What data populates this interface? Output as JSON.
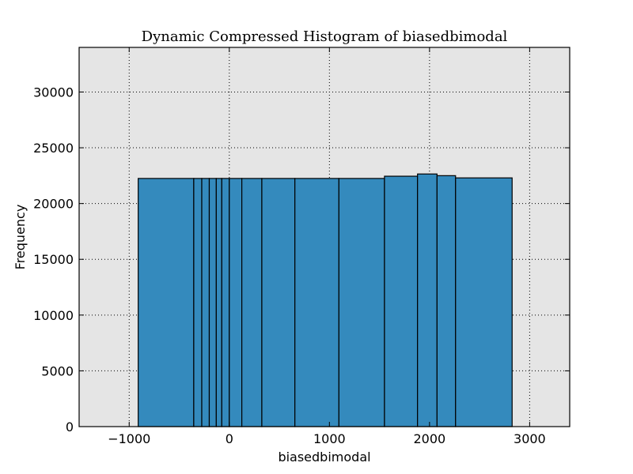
{
  "chart_data": {
    "type": "bar",
    "title": "Dynamic Compressed Histogram of biasedbimodal",
    "xlabel": "biasedbimodal",
    "ylabel": "Frequency",
    "xlim": [
      -1500,
      3400
    ],
    "ylim": [
      0,
      34000
    ],
    "xticks": [
      -1000,
      0,
      1000,
      2000,
      3000
    ],
    "xtick_labels": [
      "−1000",
      "0",
      "1000",
      "2000",
      "3000"
    ],
    "yticks": [
      0,
      5000,
      10000,
      15000,
      20000,
      25000,
      30000
    ],
    "ytick_labels": [
      "0",
      "5000",
      "10000",
      "15000",
      "20000",
      "25000",
      "30000"
    ],
    "grid": true,
    "colors": {
      "bar_fill": "#348abd",
      "bar_edge": "#000000",
      "axes_background": "#e5e5e5",
      "grid": "#000000"
    },
    "bins": [
      {
        "start": -910,
        "end": -355,
        "frequency": 22250
      },
      {
        "start": -355,
        "end": -275,
        "frequency": 22250
      },
      {
        "start": -275,
        "end": -200,
        "frequency": 22250
      },
      {
        "start": -200,
        "end": -130,
        "frequency": 22250
      },
      {
        "start": -130,
        "end": -75,
        "frequency": 22250
      },
      {
        "start": -75,
        "end": 0,
        "frequency": 22250
      },
      {
        "start": 0,
        "end": 125,
        "frequency": 22250
      },
      {
        "start": 125,
        "end": 325,
        "frequency": 22250
      },
      {
        "start": 325,
        "end": 655,
        "frequency": 22250
      },
      {
        "start": 655,
        "end": 1095,
        "frequency": 22250
      },
      {
        "start": 1095,
        "end": 1550,
        "frequency": 22250
      },
      {
        "start": 1550,
        "end": 1880,
        "frequency": 22450
      },
      {
        "start": 1880,
        "end": 2075,
        "frequency": 22650
      },
      {
        "start": 2075,
        "end": 2260,
        "frequency": 22500
      },
      {
        "start": 2260,
        "end": 2825,
        "frequency": 22300
      }
    ]
  }
}
